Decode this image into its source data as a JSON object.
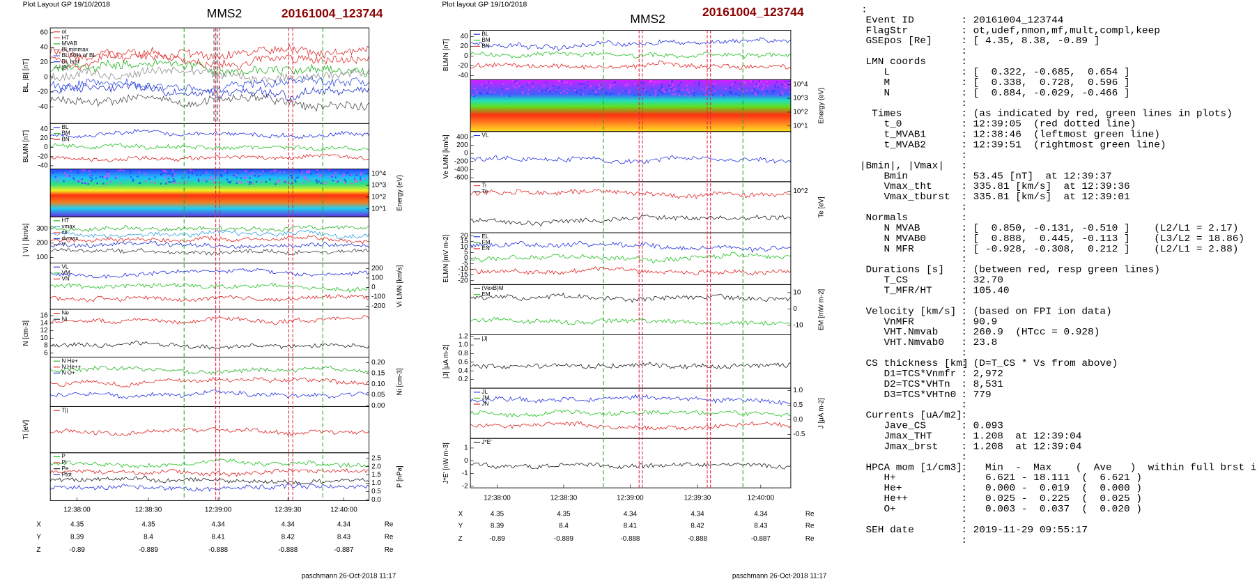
{
  "left_figure": {
    "header": "Plot Layout GP 19/10/2018",
    "spacecraft": "MMS2",
    "event": "20161004_123744",
    "panels": [
      {
        "ylabel": "BL, |B| [nT]",
        "yticks": [
          "60",
          "40",
          "20",
          "0",
          "-20",
          "-40"
        ],
        "legend": [
          {
            "text": "ot",
            "color": "#e03030"
          },
          {
            "text": "HT",
            "color": "#e03030"
          },
          {
            "text": "MVAB",
            "color": "#20b020"
          },
          {
            "text": "BLminmax",
            "color": "#909090"
          },
          {
            "text": "BL 50% of BL",
            "color": "#3050e0"
          },
          {
            "text": "BL brst",
            "color": "#2030d0"
          },
          {
            "text": "|B|",
            "color": "#505050"
          }
        ]
      },
      {
        "ylabel": "BLMN [nT]",
        "yticks": [
          "40",
          "20",
          "0",
          "-20",
          "-40"
        ],
        "legend": [
          {
            "text": "BL",
            "color": "#2030e0"
          },
          {
            "text": "BM",
            "color": "#20c020"
          },
          {
            "text": "BN",
            "color": "#e02020"
          }
        ]
      },
      {
        "ylabel": "Energy (eV)",
        "yticks": [
          "10^4",
          "10^3",
          "10^2",
          "10^1"
        ],
        "legend": []
      },
      {
        "ylabel": "| Vi | [km/s]",
        "yticks": [
          "300",
          "200",
          "100"
        ],
        "legend": [
          {
            "text": "HT",
            "color": "#20b020"
          },
          {
            "text": "vmax",
            "color": "#30a0e0"
          },
          {
            "text": "cs",
            "color": "#e02020"
          },
          {
            "text": "dvmax",
            "color": "#2030d0"
          },
          {
            "text": "V",
            "color": "#404040"
          }
        ]
      },
      {
        "ylabel": "Vi LMN [km/s]",
        "yticks": [
          "200",
          "100",
          "0",
          "-100",
          "-200"
        ],
        "legend": [
          {
            "text": "VL",
            "color": "#2030e0"
          },
          {
            "text": "VM",
            "color": "#20c020"
          },
          {
            "text": "VN",
            "color": "#e02020"
          }
        ]
      },
      {
        "ylabel": "N [cm-3]",
        "yticks": [
          "16",
          "14",
          "12",
          "10",
          "8",
          "6"
        ],
        "legend": [
          {
            "text": "Ne",
            "color": "#e02020"
          },
          {
            "text": "Ni",
            "color": "#202020"
          }
        ]
      },
      {
        "ylabel": "Ni [cm-3]",
        "yticks": [
          "0.20",
          "0.15",
          "0.10",
          "0.05",
          "0.00"
        ],
        "legend": [
          {
            "text": "N  He+",
            "color": "#20b020"
          },
          {
            "text": "N  He++",
            "color": "#e02020"
          },
          {
            "text": "N  O+",
            "color": "#2030e0"
          }
        ]
      },
      {
        "ylabel": "Ti [eV]",
        "yticks": [],
        "legend": [
          {
            "text": "T||",
            "color": "#e02020"
          }
        ]
      },
      {
        "ylabel": "P [nPa]",
        "yticks": [
          "2.5",
          "2.0",
          "1.5",
          "1.0",
          "0.5",
          "0.0"
        ],
        "legend": [
          {
            "text": "P",
            "color": "#20c020"
          },
          {
            "text": "Pi",
            "color": "#e02020"
          },
          {
            "text": "Pe",
            "color": "#202020"
          },
          {
            "text": "Ptot",
            "color": "#2030e0"
          }
        ]
      }
    ],
    "xticks": [
      "12:38:00",
      "12:38:30",
      "12:39:00",
      "12:39:30",
      "12:40:00"
    ],
    "ephemeris": [
      [
        "X",
        "4.35",
        "4.35",
        "4.34",
        "4.34",
        "4.34",
        "Re"
      ],
      [
        "Y",
        "8.39",
        "8.4",
        "8.41",
        "8.42",
        "8.43",
        "Re"
      ],
      [
        "Z",
        "-0.89",
        "-0.889",
        "-0.888",
        "-0.888",
        "-0.887",
        "Re"
      ]
    ],
    "footer": "paschmann 26-Oct-2018 11:17"
  },
  "middle_figure": {
    "header": "Plot layout GP 19/10/2018",
    "spacecraft": "MMS2",
    "event": "20161004_123744",
    "panels": [
      {
        "ylabel": "BLMN [nT]",
        "yticks": [
          "40",
          "20",
          "0",
          "-20",
          "-40"
        ],
        "legend": [
          {
            "text": "BL",
            "color": "#2030e0"
          },
          {
            "text": "BM",
            "color": "#20c020"
          },
          {
            "text": "BN",
            "color": "#e02020"
          }
        ]
      },
      {
        "ylabel": "Energy (eV)",
        "yticks": [
          "10^4",
          "10^3",
          "10^2",
          "10^1"
        ],
        "legend": []
      },
      {
        "ylabel": "Ve LMN [km/s]",
        "yticks": [
          "400",
          "200",
          "0",
          "-200",
          "-400",
          "-600"
        ],
        "legend": [
          {
            "text": "VL",
            "color": "#2030e0"
          }
        ]
      },
      {
        "ylabel": "Te [eV]",
        "yticks": [
          "10^2"
        ],
        "legend": [
          {
            "text": "Ti",
            "color": "#e02020"
          },
          {
            "text": "Te",
            "color": "#202020"
          }
        ]
      },
      {
        "ylabel": "ELMN [mV m-2]",
        "yticks": [
          "20",
          "15",
          "10",
          "5",
          "0",
          "-5",
          "-10",
          "-15",
          "-20"
        ],
        "legend": [
          {
            "text": "EL",
            "color": "#2030e0"
          },
          {
            "text": "EM",
            "color": "#20c020"
          },
          {
            "text": "EN",
            "color": "#e02020"
          }
        ]
      },
      {
        "ylabel": "EM [mW m-2]",
        "yticks": [
          "10",
          "0",
          "-10"
        ],
        "legend": [
          {
            "text": "(VexB)M",
            "color": "#202020"
          },
          {
            "text": "EM",
            "color": "#20c020"
          }
        ]
      },
      {
        "ylabel": "|J| [μA m-2]",
        "yticks": [
          "1.2",
          "1.0",
          "0.8",
          "0.6",
          "0.4",
          "0.2"
        ],
        "legend": [
          {
            "text": "|J|",
            "color": "#202020"
          }
        ]
      },
      {
        "ylabel": "J [μA m-2]",
        "yticks": [
          "1.0",
          "0.5",
          "0.0",
          "-0.5"
        ],
        "legend": [
          {
            "text": "JL",
            "color": "#2030e0"
          },
          {
            "text": "JM",
            "color": "#20c020"
          },
          {
            "text": "JN",
            "color": "#e02020"
          }
        ]
      },
      {
        "ylabel": "J*E' [nW m-3]",
        "yticks": [
          "1",
          "0",
          "-1",
          "-2"
        ],
        "legend": [
          {
            "text": "J*E'",
            "color": "#202020"
          }
        ]
      }
    ],
    "xticks": [
      "12:38:00",
      "12:38:30",
      "12:39:00",
      "12:39:30",
      "12:40:00"
    ],
    "ephemeris": [
      [
        "X",
        "4.35",
        "4.35",
        "4.34",
        "4.34",
        "4.34",
        "Re"
      ],
      [
        "Y",
        "8.39",
        "8.4",
        "8.41",
        "8.42",
        "8.43",
        "Re"
      ],
      [
        "Z",
        "-0.89",
        "-0.889",
        "-0.888",
        "-0.888",
        "-0.887",
        "Re"
      ]
    ],
    "footer": "paschmann 26-Oct-2018 11:17"
  },
  "summary": {
    "top": ":",
    "rows": [
      [
        " Event ID",
        ": 20161004_123744"
      ],
      [
        " FlagStr",
        ": ot,udef,nmon,mf,mult,compl,keep"
      ],
      [
        " GSEpos [Re]",
        ": [ 4.35, 8.38, -0.89 ]"
      ],
      [
        ":"
      ],
      [
        " LMN coords",
        ":"
      ],
      [
        "    L",
        ": [  0.322, -0.685,  0.654 ]"
      ],
      [
        "    M",
        ": [  0.338,  0.728,  0.596 ]"
      ],
      [
        "    N",
        ": [  0.884, -0.029, -0.466 ]"
      ],
      [
        ":"
      ],
      [
        "  Times",
        ": (as indicated by red, green lines in plots)"
      ],
      [
        "    t_0",
        ": 12:39:05  (red dotted line)"
      ],
      [
        "    t_MVAB1",
        ": 12:38:46  (leftmost green line)"
      ],
      [
        "    t_MVAB2",
        ": 12:39:51  (rightmost green line)"
      ],
      [
        ":"
      ],
      [
        "|Bmin|, |Vmax|",
        ":"
      ],
      [
        "    Bmin",
        ": 53.45 [nT]  at 12:39:37"
      ],
      [
        "    Vmax_tht",
        ": 335.81 [km/s]  at 12:39:36"
      ],
      [
        "    Vmax_tburst",
        ": 335.81 [km/s]  at 12:39:01"
      ],
      [
        ":"
      ],
      [
        " Normals",
        ":"
      ],
      [
        "    N MVAB",
        ": [  0.850, -0.131, -0.510 ]    (L2/L1 = 2.17)"
      ],
      [
        "    N MVAB0",
        ": [  0.888,  0.445, -0.113 ]    (L3/L2 = 18.86)"
      ],
      [
        "    N MFR",
        ": [ -0.928, -0.308,  0.212 ]    (L2/L1 = 2.88)"
      ],
      [
        ":"
      ],
      [
        " Durations [s]",
        ": (between red, resp green lines)"
      ],
      [
        "    T_CS",
        ": 32.70"
      ],
      [
        "    T_MFR/HT",
        ": 105.40"
      ],
      [
        ":"
      ],
      [
        " Velocity [km/s]",
        ": (based on FPI ion data)"
      ],
      [
        "    VnMFR",
        ": 90.9"
      ],
      [
        "    VHT.Nmvab",
        ": 260.9  (HTcc = 0.928)"
      ],
      [
        "    VHT.Nmvab0",
        ": 23.8"
      ],
      [
        ":"
      ],
      [
        " CS thickness [km]",
        ": (D=T_CS * Vs from above)"
      ],
      [
        "    D1=TCS*Vnmfr",
        ": 2,972"
      ],
      [
        "    D2=TCS*VHTn",
        ": 8,531"
      ],
      [
        "    D3=TCS*VHTn0",
        ": 779"
      ],
      [
        ":"
      ],
      [
        " Currents [uA/m2]",
        ":"
      ],
      [
        "    Jave_CS",
        ": 0.093"
      ],
      [
        "    Jmax_THT",
        ": 1.208  at 12:39:04"
      ],
      [
        "    Jmax_brst",
        ": 1.208  at 12:39:04"
      ],
      [
        ":"
      ],
      [
        " HPCA mom [1/cm3]",
        ":   Min  -  Max    (  Ave   )  within full brst int"
      ],
      [
        "    H+",
        ":   6.621 - 18.111  (  6.621 )"
      ],
      [
        "    He+",
        ":   0.000 -  0.019  (  0.000 )"
      ],
      [
        "    He++",
        ":   0.025 -  0.225  (  0.025 )"
      ],
      [
        "    O+",
        ":   0.003 -  0.037  (  0.020 )"
      ],
      [
        ":"
      ],
      [
        " SEH date",
        ": 2019-11-29 09:55:17"
      ],
      [
        ":"
      ]
    ]
  }
}
